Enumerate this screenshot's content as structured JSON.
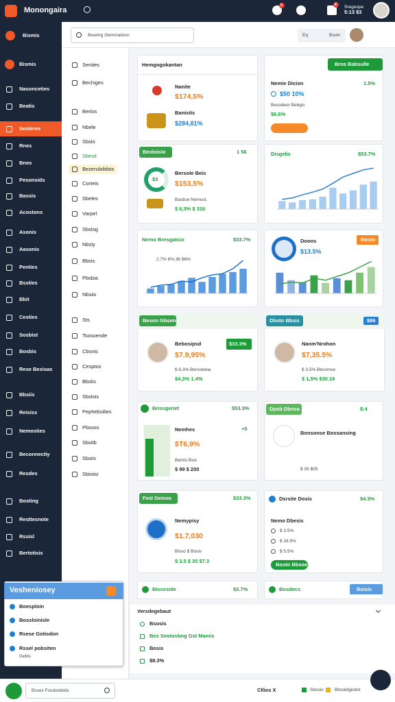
{
  "topbar": {
    "brand": "Monongaira",
    "badges": [
      "9",
      "8"
    ],
    "user": [
      "Sregeope",
      "5:13 $3"
    ]
  },
  "header": {
    "sidebar_title": "Bismis",
    "search_placeholder": "Bearing Gemmalsion",
    "actions": [
      "Eq",
      "Bsoin"
    ]
  },
  "sidebar": {
    "items": [
      "Bismis",
      "Nasonceties",
      "Beatis",
      "Sesteres",
      "Rnes",
      "Bnes",
      "Pesonsids",
      "Bassis",
      "Acostons",
      "Asonis",
      "Aasonis",
      "Penties",
      "Bssties",
      "Bbit",
      "Cesties",
      "Sosbist",
      "Bosbis",
      "Rese Besisas",
      "Bbsiis",
      "Reisiss",
      "Nemosties",
      "Beconnectiy",
      "Resdes",
      "Bosting",
      "Resttesnote",
      "Rssisl",
      "Bertotisis"
    ]
  },
  "subnav": {
    "items": [
      "Senties",
      "Bechiges",
      "Berlos",
      "Nbele",
      "Sbslo",
      "Sbesit",
      "Bezerulolidsis",
      "Corteis",
      "Sbeles",
      "Varpel",
      "Sbslog",
      "Nbsly",
      "Bbsis",
      "Pbsbia",
      "Nbsiis",
      "Sts",
      "Tsosoende",
      "Cbsnis",
      "Cesptos",
      "Bbslis",
      "Sbslois",
      "Pephebsilies",
      "Pbssos",
      "Sbsitb",
      "Sbsiis",
      "Sbisiisi"
    ]
  },
  "overview": {
    "title": "Hemgogokantan",
    "button": "Bros Babsulle",
    "a_name": "Nanite",
    "a_value": "$174,5%",
    "b_name": "Banisits",
    "b_value": "$284,81%",
    "c_name": "Nemie Dicion",
    "c_change": "1.5%",
    "c_value": "$50 10%",
    "d_name": "Besodeor Bebgis",
    "d_value": "$6.6%"
  },
  "stats": {
    "pill": "Bexloisio",
    "pill_value": "1 56",
    "donut_label": "$3",
    "a_name": "Bersole Beis",
    "a_value": "$153,5%",
    "b_name": "Bastice Nemust.",
    "b_value": "$ 6,3% $ 316"
  },
  "chart1": {
    "title": "Disgelis",
    "value": "$53.7%",
    "bars": [
      18,
      15,
      20,
      22,
      28,
      48,
      35,
      42,
      55,
      62
    ],
    "line": [
      22,
      25,
      32,
      38,
      45,
      58,
      72,
      80,
      88,
      92
    ],
    "ylim": [
      0,
      100
    ],
    "bar_color": "#a9cdef",
    "line_color": "#2a7fd4"
  },
  "chart2": {
    "title": "Nemo Bresgatsio",
    "value": "$33.7%",
    "subtitle": "2.7% 6%.36 $6%",
    "bars": [
      12,
      18,
      22,
      30,
      38,
      28,
      40,
      48,
      52,
      60
    ],
    "line": [
      15,
      20,
      22,
      30,
      28,
      38,
      45,
      48,
      60,
      80
    ],
    "ylim": [
      0,
      100
    ],
    "bar_color": "#5b9be0",
    "line_color": "#1e6fc8"
  },
  "chart3": {
    "title": "Doons",
    "value": "$13.5%",
    "button": "Bosto",
    "bars": [
      55,
      35,
      30,
      48,
      28,
      40,
      35,
      55,
      70
    ],
    "bar_colors": [
      "#5b8fd8",
      "#8fb5e6",
      "#5b8fd8",
      "#3aa04a",
      "#a8d3a0",
      "#5b8fd8",
      "#3aa04a",
      "#7cc46e",
      "#a8d3a0"
    ],
    "line": [
      25,
      30,
      28,
      40,
      35,
      45,
      55,
      70,
      85
    ],
    "ylim": [
      0,
      100
    ],
    "line_color": "#3aa04a"
  },
  "person1": {
    "pill": "Beson Gbsena",
    "name": "Bebosipsd",
    "badge": "$33.3%",
    "value": "$7.9,95%",
    "line1": "$ 6,3% Bersisbeia",
    "line2": "$4,3% 1.4%"
  },
  "person2": {
    "pill": "Dbsto Bbsis",
    "badge": "$86",
    "name": "Nanm'Nrohon",
    "value": "$7,35.5%",
    "line1": "$ 3,5% Bbsomse",
    "line2": "$ 1,5% $30.16"
  },
  "row5a": {
    "title": "Brissgeriet",
    "value": "$53.3%",
    "badge": "+5",
    "name": "Nemhes",
    "amount": "$T6,9%",
    "sub": "Bemis Bsis",
    "line": "$ 99 $ 200"
  },
  "row5b": {
    "pill": "Dpsb Dbnsa",
    "value": "$:4",
    "name": "Bonsonse Bossansing",
    "line": "$ 35 $05"
  },
  "row6a": {
    "pill": "Fesl Geisos",
    "value": "$33.3%",
    "name": "Nemypisy",
    "amount": "$1.7,030",
    "sub": "Bisso $ Bosis",
    "line": "$ 3.5 $ 35 $7.3"
  },
  "row6b": {
    "title": "Dsrsite Dosis",
    "value": "$4.3%",
    "name": "Nemo Dbesis",
    "options": [
      "$ 3.5%",
      "$ 18.5%",
      "$ 5.5%"
    ],
    "button": "Bosto Bbsoe"
  },
  "row7": {
    "a_title": "Bisseside",
    "a_value": "$3.7%",
    "b_title": "Bosdecs",
    "b_button": "Bsisis"
  },
  "section": {
    "title": "Versdegebaut",
    "items": [
      "Bsosis",
      "Bes Seotosbng Gst Mamis",
      "Bosis",
      "$8.3%"
    ]
  },
  "popup": {
    "title": "Vesheniosey",
    "items": [
      "Boesploin",
      "Bossloinisle",
      "Rsese Gotisdon",
      "Rssel pobsiten",
      "Gebis"
    ]
  },
  "footer": {
    "search": "Bsses Fosdondsits",
    "links": [
      "Cllios X",
      "Sbosis",
      "Bbsdetgiodst"
    ]
  }
}
